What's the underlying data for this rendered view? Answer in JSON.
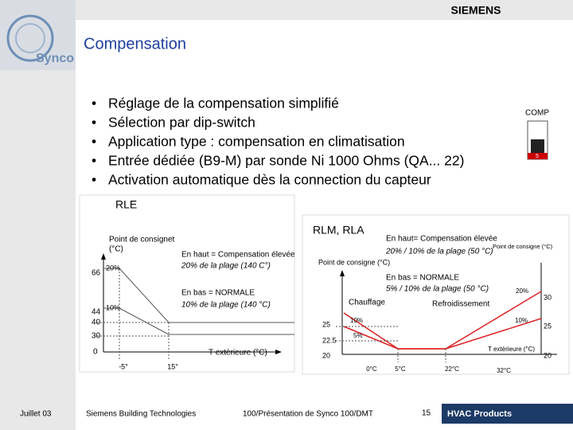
{
  "header": {
    "brand": "SIEMENS",
    "title": "Compensation",
    "logo": "Synco"
  },
  "bullets": [
    "Réglage de la compensation simplifié",
    "Sélection par dip-switch",
    "Application type : compensation en climatisation",
    "Entrée dédiée (B9-M) par sonde Ni 1000 Ohms (QA... 22)",
    "Activation automatique dès la connection du capteur"
  ],
  "switch": {
    "label": "COMP",
    "position": "5"
  },
  "diagram_rle": {
    "title": "RLE",
    "y_axis_label": [
      "Point de consignet",
      "(°C)"
    ],
    "x_axis_label": "T extèrieure (°C)",
    "y_labels": [
      "66",
      "44",
      "40",
      "30",
      "0"
    ],
    "x_labels": [
      "-5°",
      "15°"
    ],
    "slopes": [
      "20%",
      "10%"
    ],
    "notes": [
      "En haut = Compensation élevée",
      "20% de la plage (140 C°)",
      "En bas = NORMALE",
      "10% de la plage (140 °C)"
    ]
  },
  "diagram_rlm": {
    "title": "RLM, RLA",
    "y_axis_label": "Point de consigne (°C)",
    "y_axis_label_right": "Point de consigne (°C)",
    "x_axis_label": "T extèrieure (°C)",
    "notes": [
      "En haut= Compensation élevée",
      "20% / 10% de la plage (50 °C)",
      "En bas = NORMALE",
      "5% / 10% de la plage (50 °C)"
    ],
    "modes": [
      "Chauffage",
      "Refroidissement"
    ],
    "y_labels": [
      "25",
      "22.5",
      "20"
    ],
    "y_labels_right": [
      "30",
      "25",
      "20"
    ],
    "x_labels": [
      "0°C",
      "5°C",
      "22°C",
      "32°C"
    ],
    "slopes": [
      "10%",
      "5%",
      "20%",
      "10%"
    ]
  },
  "footer": {
    "date": "Juillet 03",
    "company": "Siemens Building Technologies",
    "document": "100/Présentation de Synco 100/DMT",
    "page": "15",
    "division": "HVAC Products"
  }
}
